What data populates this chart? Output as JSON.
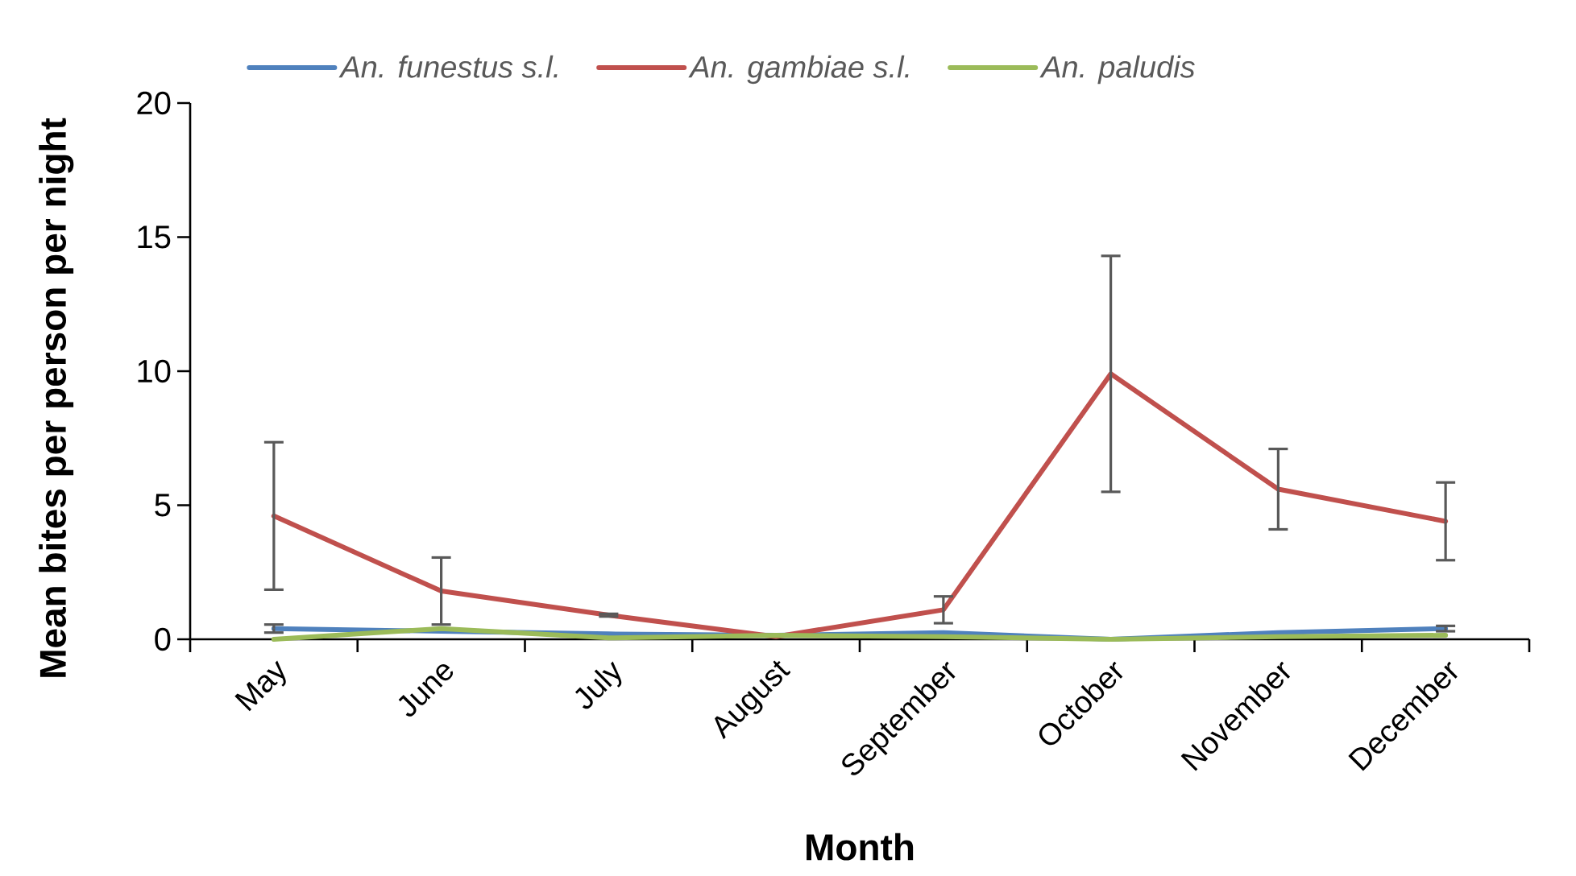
{
  "chart_data": {
    "type": "line",
    "xlabel": "Month",
    "ylabel": "Mean bites per person per night",
    "categories": [
      "May",
      "June",
      "July",
      "August",
      "September",
      "October",
      "November",
      "December"
    ],
    "series": [
      {
        "name": "An. funestus s.l.",
        "color": "#4f81bd",
        "values": [
          0.4,
          0.3,
          0.2,
          0.15,
          0.25,
          0.0,
          0.25,
          0.4
        ],
        "errors": [
          0.15,
          null,
          null,
          null,
          null,
          null,
          null,
          0.1
        ]
      },
      {
        "name": "An. gambiae s.l.",
        "color": "#c0504d",
        "values": [
          4.6,
          1.8,
          0.9,
          0.1,
          1.1,
          9.9,
          5.6,
          4.4
        ],
        "errors": [
          2.75,
          1.25,
          0.05,
          null,
          0.5,
          4.4,
          1.5,
          1.45
        ]
      },
      {
        "name": "An. paludis",
        "color": "#9bbb59",
        "values": [
          0.0,
          0.4,
          0.05,
          0.15,
          0.1,
          0.0,
          0.1,
          0.15
        ]
      }
    ],
    "ylim": [
      0,
      20
    ],
    "yticks": [
      0,
      5,
      10,
      15,
      20
    ],
    "legend": "top"
  }
}
